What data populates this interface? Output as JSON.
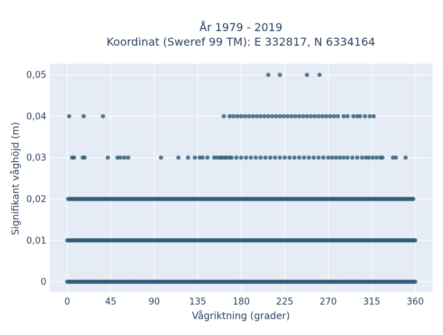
{
  "chart_data": {
    "type": "scatter",
    "title_line1": "År 1979 - 2019",
    "title_line2": "Koordinat (Sweref 99 TM): E 332817, N 6334164",
    "xlabel": "Vågriktning (grader)",
    "ylabel": "Signifikant våghöjd (m)",
    "xlim": [
      -18,
      378
    ],
    "ylim": [
      -0.0025,
      0.0527
    ],
    "x_ticks": [
      0,
      45,
      90,
      135,
      180,
      225,
      270,
      315,
      360
    ],
    "x_tick_labels": [
      "0",
      "45",
      "90",
      "135",
      "180",
      "225",
      "270",
      "315",
      "360"
    ],
    "y_ticks": [
      0,
      0.01,
      0.02,
      0.03,
      0.04,
      0.05
    ],
    "y_tick_labels": [
      "0",
      "0,01",
      "0,02",
      "0,03",
      "0,04",
      "0,05"
    ],
    "grid": true,
    "colors": {
      "marker": "#2e5a73",
      "plot_background": "#e5ecf6",
      "grid": "#ffffff",
      "text": "#2a3f5f"
    },
    "series": [
      {
        "levels": [
          {
            "y": 0.0,
            "x": [
              0,
              360
            ]
          },
          {
            "y": 0.01,
            "x": [
              0,
              360
            ]
          },
          {
            "y": 0.02,
            "x": [
              1,
              359
            ]
          },
          {
            "y": 0.03,
            "x": [
              5,
              7,
              16,
              18,
              42,
              52,
              55,
              59,
              63,
              97,
              115,
              125,
              132,
              137,
              140,
              145,
              152,
              155,
              158,
              160,
              163,
              165,
              168,
              170,
              175,
              180,
              185,
              190,
              195,
              200,
              205,
              210,
              215,
              220,
              225,
              230,
              235,
              240,
              245,
              250,
              255,
              260,
              265,
              270,
              274,
              278,
              282,
              286,
              290,
              295,
              300,
              305,
              309,
              312,
              316,
              320,
              324,
              326,
              337,
              340,
              350
            ]
          },
          {
            "y": 0.04,
            "x": [
              2,
              17,
              37,
              162,
              168,
              172,
              176,
              180,
              184,
              188,
              192,
              196,
              200,
              204,
              208,
              212,
              216,
              220,
              224,
              228,
              232,
              236,
              240,
              244,
              248,
              252,
              256,
              260,
              264,
              268,
              272,
              276,
              280,
              286,
              290,
              296,
              300,
              303,
              308,
              313,
              317
            ]
          },
          {
            "y": 0.05,
            "x": [
              208,
              220,
              248,
              261
            ]
          }
        ]
      }
    ]
  }
}
